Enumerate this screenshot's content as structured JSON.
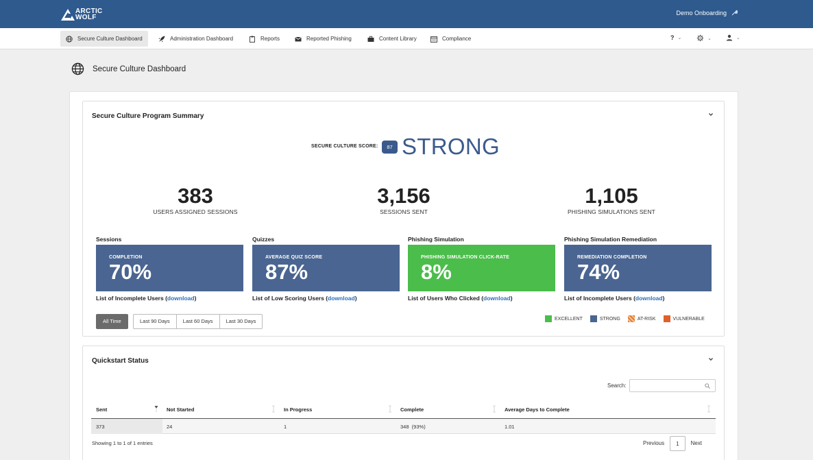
{
  "header": {
    "logo_line1": "ARCTIC",
    "logo_line2": "WOLF",
    "org_name": "Demo Onboarding"
  },
  "nav": {
    "items": [
      {
        "label": "Secure Culture Dashboard",
        "icon": "globe-icon",
        "active": true
      },
      {
        "label": "Administration Dashboard",
        "icon": "rocket-icon"
      },
      {
        "label": "Reports",
        "icon": "clipboard-icon"
      },
      {
        "label": "Reported Phishing",
        "icon": "envelope-icon"
      },
      {
        "label": "Content Library",
        "icon": "briefcase-icon"
      },
      {
        "label": "Compliance",
        "icon": "calendar-icon"
      }
    ],
    "help_label": "?"
  },
  "page": {
    "title": "Secure Culture Dashboard"
  },
  "summary": {
    "title": "Secure Culture Program Summary",
    "score_label": "SECURE CULTURE SCORE:",
    "score_value": "87",
    "score_word": "STRONG",
    "stats": [
      {
        "value": "383",
        "label": "USERS ASSIGNED SESSIONS"
      },
      {
        "value": "3,156",
        "label": "SESSIONS SENT"
      },
      {
        "value": "1,105",
        "label": "PHISHING SIMULATIONS SENT"
      }
    ],
    "metrics": [
      {
        "heading": "Sessions",
        "label": "COMPLETION",
        "value": "70%",
        "link_text": "List of Incomplete Users (",
        "link": "download",
        "link_end": ")",
        "color": "#4a6591"
      },
      {
        "heading": "Quizzes",
        "label": "AVERAGE QUIZ SCORE",
        "value": "87%",
        "link_text": "List of Low Scoring Users (",
        "link": "download",
        "link_end": ")",
        "color": "#4a6591"
      },
      {
        "heading": "Phishing Simulation",
        "label": "PHISHING SIMULATION CLICK-RATE",
        "value": "8%",
        "link_text": "List of Users Who Clicked (",
        "link": "download",
        "link_end": ")",
        "color": "#4bbd4b"
      },
      {
        "heading": "Phishing Simulation Remediation",
        "label": "REMEDIATION COMPLETION",
        "value": "74%",
        "link_text": "List of Incomplete Users (",
        "link": "download",
        "link_end": ")",
        "color": "#4a6591"
      }
    ],
    "time_filters": [
      "All Time",
      "Last 90 Days",
      "Last 60 Days",
      "Last 30 Days"
    ],
    "active_filter": "All Time",
    "legend": [
      {
        "label": "EXCELLENT",
        "color": "#4bbd4b"
      },
      {
        "label": "STRONG",
        "color": "#4a6591"
      },
      {
        "label": "AT-RISK",
        "color": "#e07a2e"
      },
      {
        "label": "VULNERABLE",
        "color": "#e0602a"
      }
    ]
  },
  "quickstart": {
    "title": "Quickstart Status",
    "search_label": "Search:",
    "search_value": "",
    "columns": [
      "Sent",
      "Not Started",
      "In Progress",
      "Complete",
      "Average Days to Complete"
    ],
    "rows": [
      [
        "373",
        "24",
        "1",
        "348  (93%)",
        "1.01"
      ]
    ],
    "info": "Showing 1 to 1 of 1 entries",
    "pager": {
      "previous": "Previous",
      "current": "1",
      "next": "Next"
    }
  }
}
